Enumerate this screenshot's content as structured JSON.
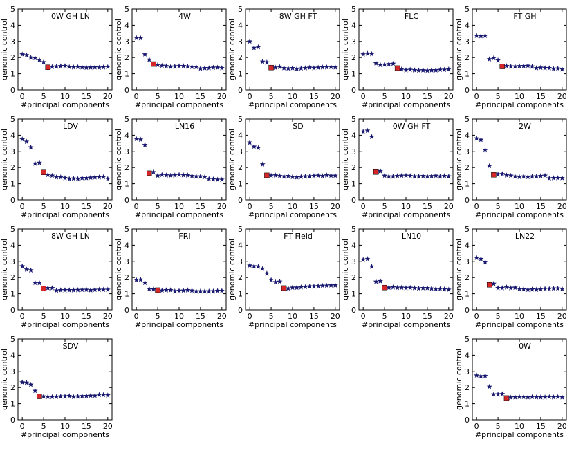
{
  "figure": {
    "rows": 4,
    "cols": 5
  },
  "colors": {
    "star": "#191970",
    "selected": "#d62728",
    "frame": "#000000"
  },
  "chart_data": [
    {
      "type": "scatter",
      "title": "0W GH LN",
      "xlabel": "#principal components",
      "ylabel": "genomic control",
      "xlim": [
        -1,
        21
      ],
      "ylim": [
        0,
        5
      ],
      "xticks": [
        0,
        5,
        10,
        15,
        20
      ],
      "yticks": [
        0,
        1,
        2,
        3,
        4,
        5
      ],
      "selected": 6,
      "values": [
        2.2,
        2.15,
        2.0,
        1.97,
        1.85,
        1.72,
        1.4,
        1.43,
        1.45,
        1.47,
        1.48,
        1.42,
        1.4,
        1.42,
        1.4,
        1.38,
        1.39,
        1.4,
        1.38,
        1.4,
        1.42
      ]
    },
    {
      "type": "scatter",
      "title": "4W",
      "xlabel": "#principal components",
      "ylabel": "genomic control",
      "xlim": [
        -1,
        21
      ],
      "ylim": [
        0,
        5
      ],
      "xticks": [
        0,
        5,
        10,
        15,
        20
      ],
      "yticks": [
        0,
        1,
        2,
        3,
        4,
        5
      ],
      "selected": 4,
      "values": [
        3.22,
        3.2,
        2.2,
        1.87,
        1.6,
        1.55,
        1.5,
        1.47,
        1.42,
        1.45,
        1.47,
        1.48,
        1.45,
        1.43,
        1.42,
        1.32,
        1.35,
        1.35,
        1.38,
        1.38,
        1.35
      ]
    },
    {
      "type": "scatter",
      "title": "8W GH FT",
      "xlabel": "#principal components",
      "ylabel": "genomic control",
      "xlim": [
        -1,
        21
      ],
      "ylim": [
        0,
        5
      ],
      "xticks": [
        0,
        5,
        10,
        15,
        20
      ],
      "yticks": [
        0,
        1,
        2,
        3,
        4,
        5
      ],
      "selected": 5,
      "values": [
        3.0,
        2.6,
        2.65,
        1.75,
        1.7,
        1.38,
        1.38,
        1.42,
        1.35,
        1.33,
        1.35,
        1.3,
        1.33,
        1.35,
        1.38,
        1.35,
        1.38,
        1.4,
        1.4,
        1.42,
        1.4
      ]
    },
    {
      "type": "scatter",
      "title": "FLC",
      "xlabel": "#principal components",
      "ylabel": "genomic control",
      "xlim": [
        -1,
        21
      ],
      "ylim": [
        0,
        5
      ],
      "xticks": [
        0,
        5,
        10,
        15,
        20
      ],
      "yticks": [
        0,
        1,
        2,
        3,
        4,
        5
      ],
      "selected": 8,
      "values": [
        2.2,
        2.25,
        2.22,
        1.65,
        1.55,
        1.57,
        1.6,
        1.62,
        1.35,
        1.28,
        1.22,
        1.25,
        1.22,
        1.2,
        1.22,
        1.2,
        1.22,
        1.22,
        1.25,
        1.25,
        1.28
      ]
    },
    {
      "type": "scatter",
      "title": "FT GH",
      "xlabel": "#principal components",
      "ylabel": "genomic control",
      "xlim": [
        -1,
        21
      ],
      "ylim": [
        0,
        5
      ],
      "xticks": [
        0,
        5,
        10,
        15,
        20
      ],
      "yticks": [
        0,
        1,
        2,
        3,
        4,
        5
      ],
      "selected": 6,
      "values": [
        3.35,
        3.33,
        3.35,
        1.9,
        1.97,
        1.83,
        1.45,
        1.48,
        1.45,
        1.45,
        1.47,
        1.48,
        1.5,
        1.45,
        1.35,
        1.38,
        1.35,
        1.35,
        1.3,
        1.32,
        1.28
      ]
    },
    {
      "type": "scatter",
      "title": "LDV",
      "xlabel": "#principal components",
      "ylabel": "genomic control",
      "xlim": [
        -1,
        21
      ],
      "ylim": [
        0,
        5
      ],
      "xticks": [
        0,
        5,
        10,
        15,
        20
      ],
      "yticks": [
        0,
        1,
        2,
        3,
        4,
        5
      ],
      "selected": 5,
      "values": [
        3.75,
        3.6,
        3.25,
        2.25,
        2.3,
        1.7,
        1.55,
        1.5,
        1.4,
        1.4,
        1.35,
        1.3,
        1.32,
        1.3,
        1.35,
        1.35,
        1.38,
        1.4,
        1.4,
        1.42,
        1.3
      ]
    },
    {
      "type": "scatter",
      "title": "LN16",
      "xlabel": "#principal components",
      "ylabel": "genomic control",
      "xlim": [
        -1,
        21
      ],
      "ylim": [
        0,
        5
      ],
      "xticks": [
        0,
        5,
        10,
        15,
        20
      ],
      "yticks": [
        0,
        1,
        2,
        3,
        4,
        5
      ],
      "selected": 3,
      "values": [
        3.77,
        3.73,
        3.4,
        1.65,
        1.72,
        1.5,
        1.55,
        1.52,
        1.5,
        1.52,
        1.55,
        1.53,
        1.52,
        1.48,
        1.45,
        1.45,
        1.42,
        1.3,
        1.28,
        1.25,
        1.25
      ]
    },
    {
      "type": "scatter",
      "title": "SD",
      "xlabel": "#principal components",
      "ylabel": "genomic control",
      "xlim": [
        -1,
        21
      ],
      "ylim": [
        0,
        5
      ],
      "xticks": [
        0,
        5,
        10,
        15,
        20
      ],
      "yticks": [
        0,
        1,
        2,
        3,
        4,
        5
      ],
      "selected": 4,
      "values": [
        3.55,
        3.3,
        3.22,
        2.2,
        1.52,
        1.5,
        1.52,
        1.48,
        1.45,
        1.48,
        1.42,
        1.4,
        1.43,
        1.45,
        1.45,
        1.48,
        1.5,
        1.48,
        1.52,
        1.5,
        1.5
      ]
    },
    {
      "type": "scatter",
      "title": "0W GH FT",
      "xlabel": "#principal components",
      "ylabel": "genomic control",
      "xlim": [
        -1,
        21
      ],
      "ylim": [
        0,
        5
      ],
      "xticks": [
        0,
        5,
        10,
        15,
        20
      ],
      "yticks": [
        0,
        1,
        2,
        3,
        4,
        5
      ],
      "selected": 3,
      "values": [
        4.22,
        4.28,
        3.9,
        1.72,
        1.78,
        1.5,
        1.45,
        1.45,
        1.48,
        1.5,
        1.5,
        1.48,
        1.45,
        1.45,
        1.48,
        1.45,
        1.47,
        1.5,
        1.45,
        1.48,
        1.45
      ]
    },
    {
      "type": "scatter",
      "title": "2W",
      "xlabel": "#principal components",
      "ylabel": "genomic control",
      "xlim": [
        -1,
        21
      ],
      "ylim": [
        0,
        5
      ],
      "xticks": [
        0,
        5,
        10,
        15,
        20
      ],
      "yticks": [
        0,
        1,
        2,
        3,
        4,
        5
      ],
      "selected": 4,
      "values": [
        3.8,
        3.72,
        3.08,
        2.1,
        1.55,
        1.58,
        1.6,
        1.52,
        1.5,
        1.45,
        1.42,
        1.45,
        1.42,
        1.45,
        1.45,
        1.48,
        1.5,
        1.33,
        1.35,
        1.35,
        1.35
      ]
    },
    {
      "type": "scatter",
      "title": "8W GH LN",
      "xlabel": "#principal components",
      "ylabel": "genomic control",
      "xlim": [
        -1,
        21
      ],
      "ylim": [
        0,
        5
      ],
      "xticks": [
        0,
        5,
        10,
        15,
        20
      ],
      "yticks": [
        0,
        1,
        2,
        3,
        4,
        5
      ],
      "selected": 5,
      "values": [
        2.7,
        2.5,
        2.45,
        1.68,
        1.67,
        1.32,
        1.35,
        1.35,
        1.2,
        1.22,
        1.22,
        1.22,
        1.22,
        1.23,
        1.25,
        1.25,
        1.22,
        1.25,
        1.25,
        1.25,
        1.25
      ]
    },
    {
      "type": "scatter",
      "title": "FRI",
      "xlabel": "#principal components",
      "ylabel": "genomic control",
      "xlim": [
        -1,
        21
      ],
      "ylim": [
        0,
        5
      ],
      "xticks": [
        0,
        5,
        10,
        15,
        20
      ],
      "yticks": [
        0,
        1,
        2,
        3,
        4,
        5
      ],
      "selected": 5,
      "values": [
        1.85,
        1.87,
        1.68,
        1.3,
        1.27,
        1.22,
        1.2,
        1.22,
        1.22,
        1.15,
        1.18,
        1.2,
        1.22,
        1.2,
        1.15,
        1.15,
        1.15,
        1.15,
        1.15,
        1.18,
        1.18
      ]
    },
    {
      "type": "scatter",
      "title": "FT Field",
      "xlabel": "#principal components",
      "ylabel": "genomic control",
      "xlim": [
        -1,
        21
      ],
      "ylim": [
        0,
        5
      ],
      "xticks": [
        0,
        5,
        10,
        15,
        20
      ],
      "yticks": [
        0,
        1,
        2,
        3,
        4,
        5
      ],
      "selected": 8,
      "values": [
        2.75,
        2.7,
        2.68,
        2.55,
        2.25,
        1.85,
        1.72,
        1.75,
        1.35,
        1.33,
        1.38,
        1.38,
        1.4,
        1.42,
        1.45,
        1.45,
        1.47,
        1.5,
        1.5,
        1.52,
        1.52
      ]
    },
    {
      "type": "scatter",
      "title": "LN10",
      "xlabel": "#principal components",
      "ylabel": "genomic control",
      "xlim": [
        -1,
        21
      ],
      "ylim": [
        0,
        5
      ],
      "xticks": [
        0,
        5,
        10,
        15,
        20
      ],
      "yticks": [
        0,
        1,
        2,
        3,
        4,
        5
      ],
      "selected": 5,
      "values": [
        3.1,
        3.15,
        2.68,
        1.75,
        1.78,
        1.38,
        1.38,
        1.4,
        1.37,
        1.38,
        1.35,
        1.37,
        1.35,
        1.32,
        1.35,
        1.35,
        1.32,
        1.3,
        1.3,
        1.28,
        1.25
      ]
    },
    {
      "type": "scatter",
      "title": "LN22",
      "xlabel": "#principal components",
      "ylabel": "genomic control",
      "xlim": [
        -1,
        21
      ],
      "ylim": [
        0,
        5
      ],
      "xticks": [
        0,
        5,
        10,
        15,
        20
      ],
      "yticks": [
        0,
        1,
        2,
        3,
        4,
        5
      ],
      "selected": 3,
      "values": [
        3.22,
        3.15,
        2.95,
        1.55,
        1.62,
        1.35,
        1.35,
        1.4,
        1.35,
        1.38,
        1.3,
        1.28,
        1.25,
        1.27,
        1.25,
        1.28,
        1.3,
        1.3,
        1.32,
        1.32,
        1.3
      ]
    },
    {
      "type": "scatter",
      "title": "SDV",
      "xlabel": "#principal components",
      "ylabel": "genomic control",
      "xlim": [
        -1,
        21
      ],
      "ylim": [
        0,
        5
      ],
      "xticks": [
        0,
        5,
        10,
        15,
        20
      ],
      "yticks": [
        0,
        1,
        2,
        3,
        4,
        5
      ],
      "selected": 4,
      "values": [
        2.32,
        2.3,
        2.18,
        1.8,
        1.45,
        1.45,
        1.43,
        1.42,
        1.43,
        1.45,
        1.45,
        1.48,
        1.42,
        1.45,
        1.47,
        1.48,
        1.5,
        1.5,
        1.55,
        1.55,
        1.52
      ]
    },
    {
      "type": "scatter",
      "title": "0W",
      "xlabel": "#principal components",
      "ylabel": "genomic control",
      "xlim": [
        -1,
        21
      ],
      "ylim": [
        0,
        5
      ],
      "xticks": [
        0,
        5,
        10,
        15,
        20
      ],
      "yticks": [
        0,
        1,
        2,
        3,
        4,
        5
      ],
      "selected": 7,
      "values": [
        2.75,
        2.7,
        2.72,
        2.05,
        1.58,
        1.58,
        1.6,
        1.35,
        1.38,
        1.4,
        1.42,
        1.42,
        1.4,
        1.42,
        1.4,
        1.4,
        1.4,
        1.42,
        1.4,
        1.42,
        1.4
      ]
    }
  ]
}
